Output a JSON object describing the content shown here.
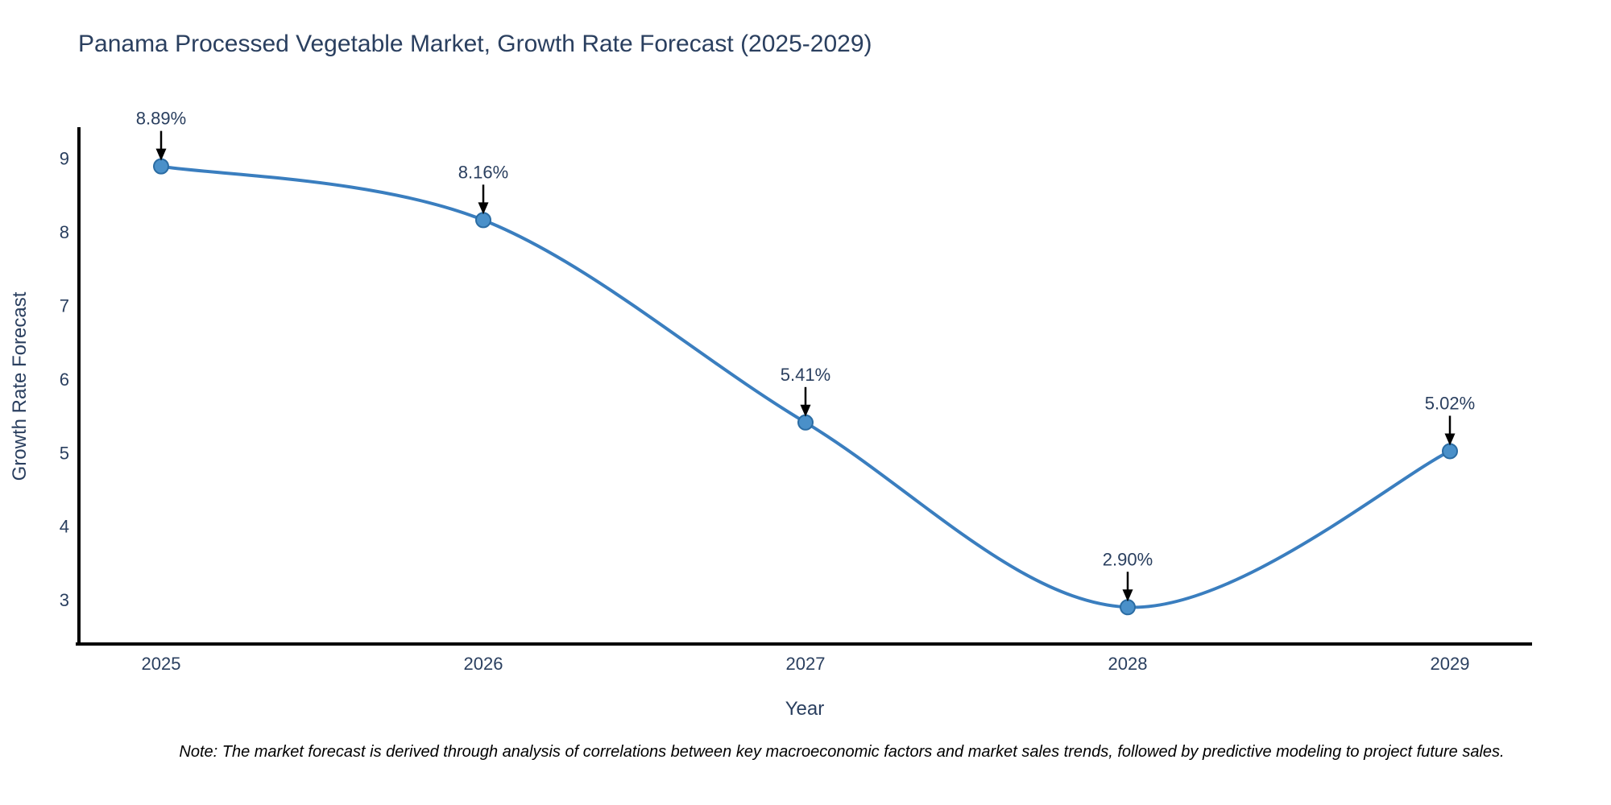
{
  "chart_data": {
    "type": "line",
    "title": "Panama Processed Vegetable Market, Growth Rate Forecast (2025-2029)",
    "xlabel": "Year",
    "ylabel": "Growth Rate Forecast",
    "x": [
      "2025",
      "2026",
      "2027",
      "2028",
      "2029"
    ],
    "series": [
      {
        "name": "Growth Rate Forecast",
        "values": [
          8.89,
          8.16,
          5.41,
          2.9,
          5.02
        ]
      }
    ],
    "point_labels": [
      "8.89%",
      "8.16%",
      "5.41%",
      "2.90%",
      "5.02%"
    ],
    "yticks": [
      3,
      4,
      5,
      6,
      7,
      8,
      9
    ],
    "ylim": [
      2.4,
      9.4
    ],
    "line_shape": "spline",
    "grid": false,
    "legend_position": "none",
    "colors": {
      "line": "#3a7ebf",
      "marker_fill": "#4a90c9",
      "marker_edge": "#2b6ca3",
      "text": "#2a3f5f",
      "axis_line": "#000000",
      "annotation_arrow": "#000000",
      "note_text": "#000000",
      "background": "#ffffff"
    }
  },
  "note": "Note: The market forecast is derived through analysis of correlations between key macroeconomic factors and market sales trends, followed by predictive modeling to project future sales."
}
